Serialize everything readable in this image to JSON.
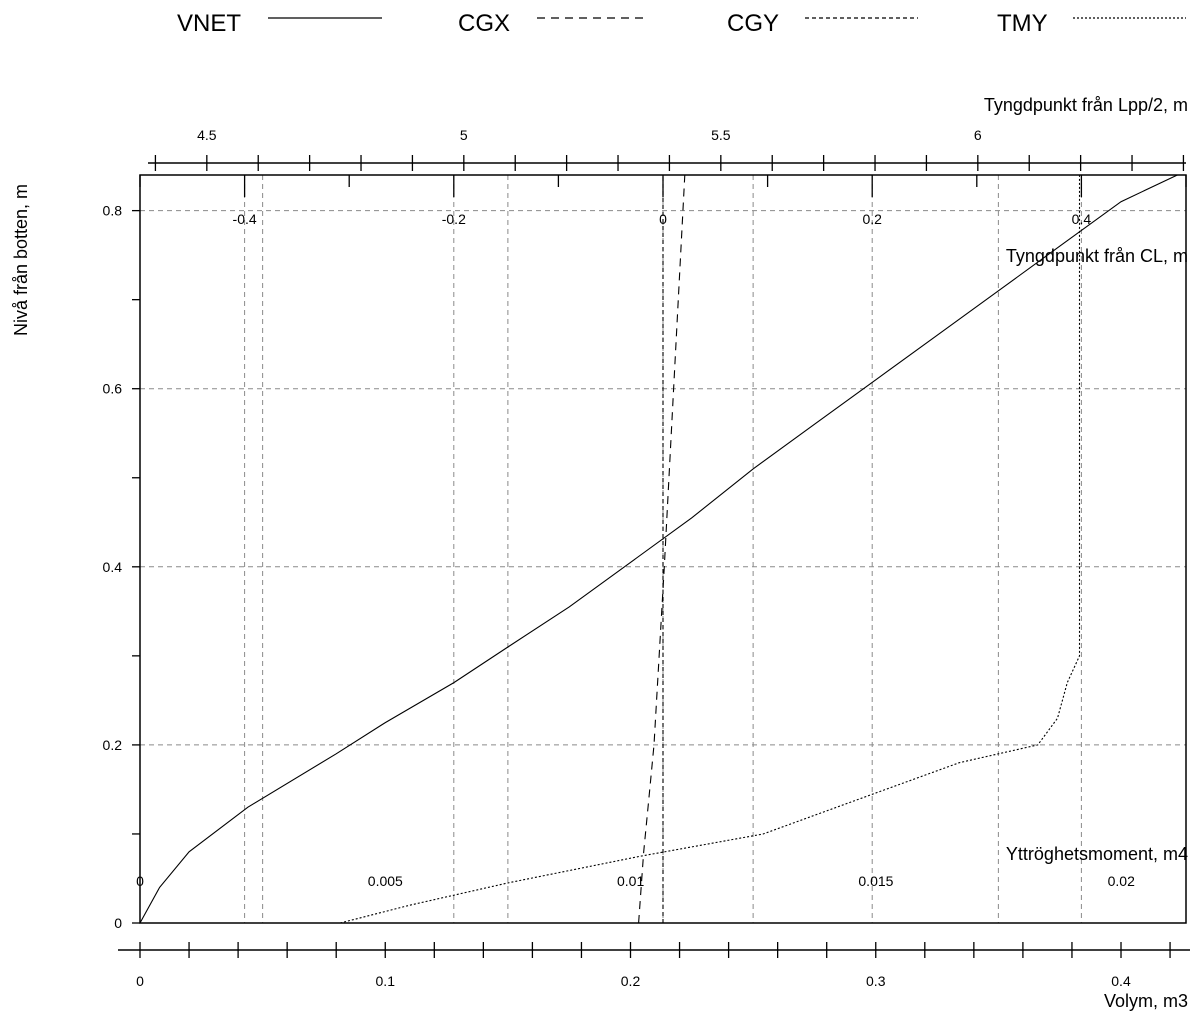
{
  "chart_data": {
    "type": "line",
    "legend": [
      {
        "name": "VNET",
        "dash": "solid"
      },
      {
        "name": "CGX",
        "dash": "dashed"
      },
      {
        "name": "CGY",
        "dash": "short-dashed"
      },
      {
        "name": "TMY",
        "dash": "dotted"
      }
    ],
    "ylabel": "Nivå från botten, m",
    "ylim": [
      0,
      0.84
    ],
    "yticks": [
      "0",
      "0.2",
      "0.4",
      "0.6",
      "0.8"
    ],
    "yticks_values": [
      0,
      0.2,
      0.4,
      0.6,
      0.8
    ],
    "axes": {
      "volume": {
        "label": "Volym, m3",
        "range": [
          0,
          0.4265
        ],
        "ticks": [
          "0",
          "0.1",
          "0.2",
          "0.3",
          "0.4"
        ],
        "tick_values": [
          0,
          0.1,
          0.2,
          0.3,
          0.4
        ]
      },
      "moment": {
        "label": "Yttröghetsmoment, m4",
        "range": [
          0,
          0.02132
        ],
        "ticks": [
          "0",
          "0.005",
          "0.01",
          "0.015",
          "0.02"
        ],
        "tick_values": [
          0,
          0.005,
          0.01,
          0.015,
          0.02
        ]
      },
      "cl": {
        "label": "Tyngdpunkt från CL, m",
        "range": [
          -0.5,
          0.5
        ],
        "ticks": [
          "-0.4",
          "-0.2",
          "0",
          "0.2",
          "0.4"
        ],
        "tick_values": [
          -0.4,
          -0.2,
          0,
          0.2,
          0.4
        ]
      },
      "lpp": {
        "label": "Tyngdpunkt från Lpp/2, m",
        "range": [
          4.37,
          6.405
        ],
        "ticks": [
          "4.5",
          "5",
          "5.5",
          "6"
        ],
        "tick_values": [
          4.5,
          5,
          5.5,
          6
        ]
      }
    },
    "grid": true,
    "series": [
      {
        "name": "VNET",
        "axis": "volume",
        "x": [
          0,
          0.008,
          0.02,
          0.044,
          0.08,
          0.1,
          0.128,
          0.15,
          0.175,
          0.2,
          0.225,
          0.25,
          0.275,
          0.3,
          0.325,
          0.35,
          0.375,
          0.4,
          0.423
        ],
        "y": [
          0,
          0.04,
          0.08,
          0.13,
          0.19,
          0.225,
          0.27,
          0.31,
          0.355,
          0.405,
          0.455,
          0.51,
          0.56,
          0.61,
          0.66,
          0.71,
          0.76,
          0.81,
          0.855
        ]
      },
      {
        "name": "CGX",
        "axis": "lpp",
        "x": [
          5.34,
          5.35,
          5.36,
          5.37,
          5.39,
          5.43
        ],
        "y": [
          0,
          0.08,
          0.14,
          0.2,
          0.4,
          0.855
        ]
      },
      {
        "name": "CGY",
        "axis": "cl",
        "x": [
          0.0,
          0.0,
          0.0,
          0.0,
          0.0
        ],
        "y": [
          0,
          0.2,
          0.4,
          0.6,
          0.855
        ]
      },
      {
        "name": "TMY",
        "axis": "moment",
        "x": [
          0.00408,
          0.0055,
          0.0075,
          0.0102,
          0.0127,
          0.0147,
          0.0167,
          0.0183,
          0.0187,
          0.0189,
          0.01915,
          0.01915,
          0.01915
        ],
        "y": [
          0,
          0.02,
          0.045,
          0.075,
          0.1,
          0.14,
          0.18,
          0.2,
          0.23,
          0.27,
          0.3,
          0.6,
          0.84
        ]
      }
    ]
  }
}
